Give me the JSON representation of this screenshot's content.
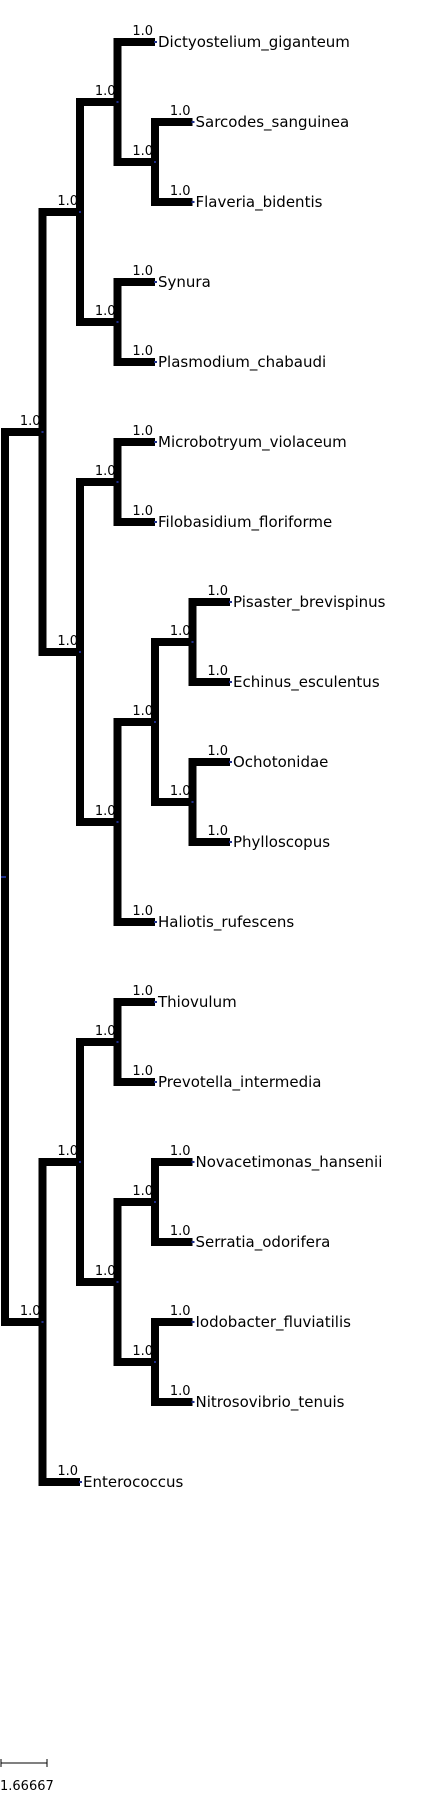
{
  "tree": {
    "root": {
      "children": [
        {
          "support": "1.0",
          "children": [
            {
              "support": "1.0",
              "children": [
                {
                  "support": "1.0",
                  "children": [
                    {
                      "support": "1.0",
                      "label": "Dictyostelium_giganteum"
                    },
                    {
                      "support": "1.0",
                      "children": [
                        {
                          "support": "1.0",
                          "label": "Sarcodes_sanguinea"
                        },
                        {
                          "support": "1.0",
                          "label": "Flaveria_bidentis"
                        }
                      ]
                    }
                  ]
                },
                {
                  "support": "1.0",
                  "children": [
                    {
                      "support": "1.0",
                      "label": "Synura"
                    },
                    {
                      "support": "1.0",
                      "label": "Plasmodium_chabaudi"
                    }
                  ]
                }
              ]
            },
            {
              "support": "1.0",
              "children": [
                {
                  "support": "1.0",
                  "children": [
                    {
                      "support": "1.0",
                      "label": "Microbotryum_violaceum"
                    },
                    {
                      "support": "1.0",
                      "label": "Filobasidium_floriforme"
                    }
                  ]
                },
                {
                  "support": "1.0",
                  "children": [
                    {
                      "support": "1.0",
                      "children": [
                        {
                          "support": "1.0",
                          "children": [
                            {
                              "support": "1.0",
                              "label": "Pisaster_brevispinus"
                            },
                            {
                              "support": "1.0",
                              "label": "Echinus_esculentus"
                            }
                          ]
                        },
                        {
                          "support": "1.0",
                          "children": [
                            {
                              "support": "1.0",
                              "label": "Ochotonidae"
                            },
                            {
                              "support": "1.0",
                              "label": "Phylloscopus"
                            }
                          ]
                        }
                      ]
                    },
                    {
                      "support": "1.0",
                      "label": "Haliotis_rufescens"
                    }
                  ]
                }
              ]
            }
          ]
        },
        {
          "support": "1.0",
          "children": [
            {
              "support": "1.0",
              "children": [
                {
                  "support": "1.0",
                  "children": [
                    {
                      "support": "1.0",
                      "label": "Thiovulum"
                    },
                    {
                      "support": "1.0",
                      "label": "Prevotella_intermedia"
                    }
                  ]
                },
                {
                  "support": "1.0",
                  "children": [
                    {
                      "support": "1.0",
                      "children": [
                        {
                          "support": "1.0",
                          "label": "Novacetimonas_hansenii"
                        },
                        {
                          "support": "1.0",
                          "label": "Serratia_odorifera"
                        }
                      ]
                    },
                    {
                      "support": "1.0",
                      "children": [
                        {
                          "support": "1.0",
                          "label": "Iodobacter_fluviatilis"
                        },
                        {
                          "support": "1.0",
                          "label": "Nitrosovibrio_tenuis"
                        }
                      ]
                    }
                  ]
                }
              ]
            },
            {
              "support": "1.0",
              "label": "Enterococcus"
            }
          ]
        }
      ]
    }
  },
  "scale_bar": {
    "label": "1.66667"
  },
  "colors": {
    "branch": "#000000",
    "node_marker": "#1f2f8f",
    "text": "#000000"
  }
}
